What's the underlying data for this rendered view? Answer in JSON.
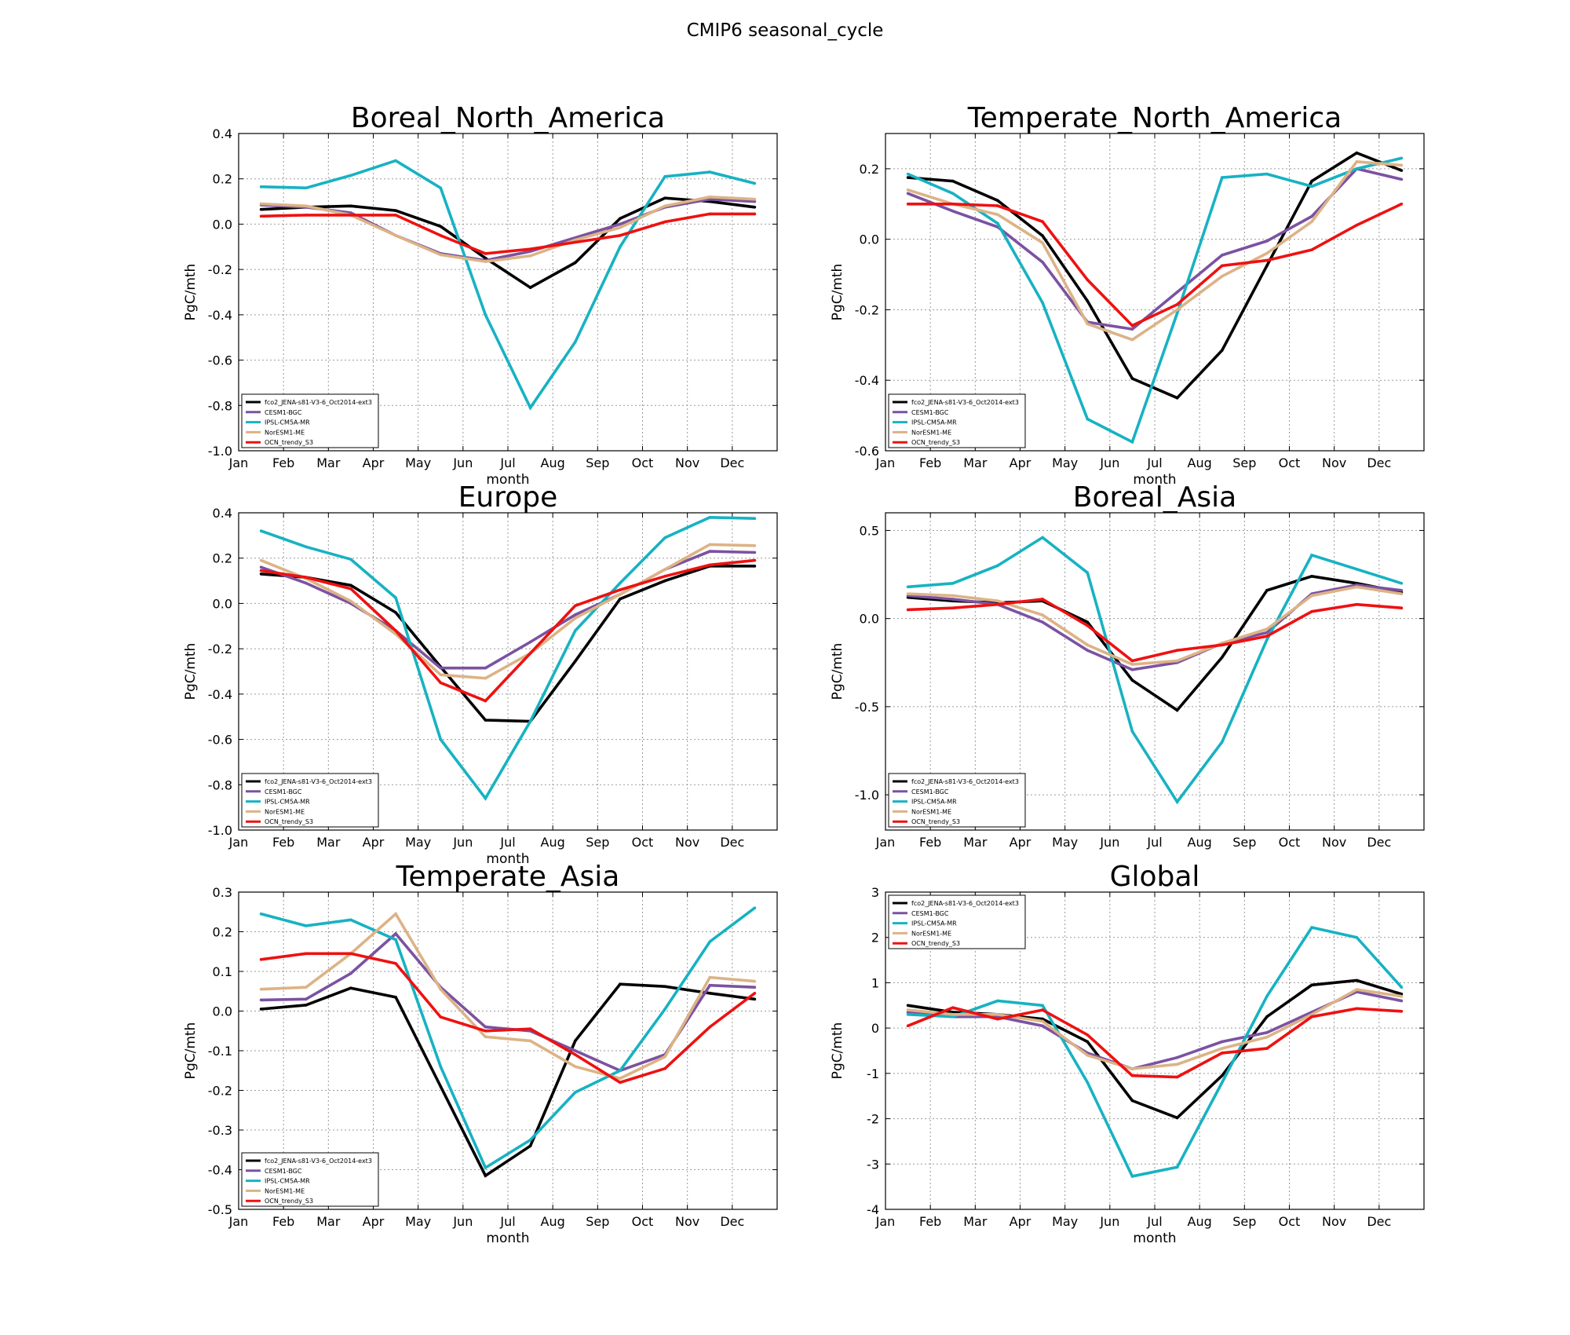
{
  "figure": {
    "title": "CMIP6 seasonal_cycle"
  },
  "series_styles": [
    {
      "name": "fco2_JENA-s81-V3-6_Oct2014-ext3",
      "color": "#000000"
    },
    {
      "name": "CESM1-BGC",
      "color": "#7b52a1"
    },
    {
      "name": "IPSL-CM5A-MR",
      "color": "#17b2c2"
    },
    {
      "name": "NorESM1-ME",
      "color": "#dcb386"
    },
    {
      "name": "OCN_trendy_S3",
      "color": "#ee1111"
    }
  ],
  "chart_data": [
    {
      "type": "line",
      "title": "Boreal_North_America",
      "xlabel": "month",
      "ylabel": "PgC/mth",
      "x_ticks": [
        "Jan",
        "Feb",
        "Mar",
        "Apr",
        "May",
        "Jun",
        "Jul",
        "Aug",
        "Sep",
        "Oct",
        "Nov",
        "Dec"
      ],
      "x": [
        0.5,
        1.5,
        2.5,
        3.5,
        4.5,
        5.5,
        6.5,
        7.5,
        8.5,
        9.5,
        10.5,
        11.5
      ],
      "xlim": [
        0,
        12
      ],
      "ylim": [
        -1.0,
        0.4
      ],
      "y_ticks": [
        "-1.0",
        "-0.8",
        "-0.6",
        "-0.4",
        "-0.2",
        "0.0",
        "0.2",
        "0.4"
      ],
      "legend_position": "lower left",
      "grid": true,
      "series": [
        {
          "name": "fco2_JENA-s81-V3-6_Oct2014-ext3",
          "values": [
            0.065,
            0.075,
            0.08,
            0.06,
            -0.01,
            -0.15,
            -0.28,
            -0.17,
            0.025,
            0.115,
            0.1,
            0.075
          ]
        },
        {
          "name": "CESM1-BGC",
          "values": [
            0.085,
            0.075,
            0.05,
            -0.05,
            -0.13,
            -0.16,
            -0.12,
            -0.06,
            0.0,
            0.075,
            0.11,
            0.1
          ]
        },
        {
          "name": "IPSL-CM5A-MR",
          "values": [
            0.165,
            0.16,
            0.215,
            0.28,
            0.16,
            -0.4,
            -0.81,
            -0.52,
            -0.1,
            0.21,
            0.23,
            0.18
          ]
        },
        {
          "name": "NorESM1-ME",
          "values": [
            0.09,
            0.08,
            0.04,
            -0.05,
            -0.135,
            -0.165,
            -0.14,
            -0.07,
            -0.015,
            0.08,
            0.12,
            0.11
          ]
        },
        {
          "name": "OCN_trendy_S3",
          "values": [
            0.035,
            0.04,
            0.04,
            0.04,
            -0.05,
            -0.13,
            -0.11,
            -0.08,
            -0.05,
            0.01,
            0.045,
            0.045
          ]
        }
      ]
    },
    {
      "type": "line",
      "title": "Temperate_North_America",
      "xlabel": "month",
      "ylabel": "PgC/mth",
      "x_ticks": [
        "Jan",
        "Feb",
        "Mar",
        "Apr",
        "May",
        "Jun",
        "Jul",
        "Aug",
        "Sep",
        "Oct",
        "Nov",
        "Dec"
      ],
      "x": [
        0.5,
        1.5,
        2.5,
        3.5,
        4.5,
        5.5,
        6.5,
        7.5,
        8.5,
        9.5,
        10.5,
        11.5
      ],
      "xlim": [
        0,
        12
      ],
      "ylim": [
        -0.6,
        0.3
      ],
      "y_ticks": [
        "-0.6",
        "-0.4",
        "-0.2",
        "0.0",
        "0.2"
      ],
      "legend_position": "lower left",
      "grid": true,
      "series": [
        {
          "name": "fco2_JENA-s81-V3-6_Oct2014-ext3",
          "values": [
            0.175,
            0.165,
            0.11,
            0.01,
            -0.175,
            -0.395,
            -0.45,
            -0.315,
            -0.075,
            0.165,
            0.245,
            0.195
          ]
        },
        {
          "name": "CESM1-BGC",
          "values": [
            0.13,
            0.08,
            0.035,
            -0.065,
            -0.235,
            -0.255,
            -0.15,
            -0.045,
            -0.005,
            0.065,
            0.2,
            0.17
          ]
        },
        {
          "name": "IPSL-CM5A-MR",
          "values": [
            0.185,
            0.13,
            0.045,
            -0.18,
            -0.51,
            -0.575,
            -0.21,
            0.175,
            0.185,
            0.15,
            0.2,
            0.23
          ]
        },
        {
          "name": "NorESM1-ME",
          "values": [
            0.14,
            0.1,
            0.07,
            -0.01,
            -0.24,
            -0.285,
            -0.2,
            -0.105,
            -0.04,
            0.05,
            0.22,
            0.21
          ]
        },
        {
          "name": "OCN_trendy_S3",
          "values": [
            0.1,
            0.1,
            0.095,
            0.05,
            -0.115,
            -0.245,
            -0.185,
            -0.075,
            -0.06,
            -0.03,
            0.04,
            0.1
          ]
        }
      ]
    },
    {
      "type": "line",
      "title": "Europe",
      "xlabel": "month",
      "ylabel": "PgC/mth",
      "x_ticks": [
        "Jan",
        "Feb",
        "Mar",
        "Apr",
        "May",
        "Jun",
        "Jul",
        "Aug",
        "Sep",
        "Oct",
        "Nov",
        "Dec"
      ],
      "x": [
        0.5,
        1.5,
        2.5,
        3.5,
        4.5,
        5.5,
        6.5,
        7.5,
        8.5,
        9.5,
        10.5,
        11.5
      ],
      "xlim": [
        0,
        12
      ],
      "ylim": [
        -1.0,
        0.4
      ],
      "y_ticks": [
        "-1.0",
        "-0.8",
        "-0.6",
        "-0.4",
        "-0.2",
        "0.0",
        "0.2",
        "0.4"
      ],
      "legend_position": "lower left",
      "grid": true,
      "series": [
        {
          "name": "fco2_JENA-s81-V3-6_Oct2014-ext3",
          "values": [
            0.13,
            0.115,
            0.08,
            -0.04,
            -0.28,
            -0.515,
            -0.52,
            -0.255,
            0.02,
            0.1,
            0.165,
            0.165
          ]
        },
        {
          "name": "CESM1-BGC",
          "values": [
            0.16,
            0.09,
            0.0,
            -0.12,
            -0.285,
            -0.285,
            -0.17,
            -0.05,
            0.04,
            0.15,
            0.23,
            0.225
          ]
        },
        {
          "name": "IPSL-CM5A-MR",
          "values": [
            0.32,
            0.25,
            0.195,
            0.025,
            -0.6,
            -0.86,
            -0.52,
            -0.12,
            0.09,
            0.29,
            0.38,
            0.375
          ]
        },
        {
          "name": "NorESM1-ME",
          "values": [
            0.19,
            0.11,
            0.01,
            -0.135,
            -0.315,
            -0.33,
            -0.22,
            -0.065,
            0.04,
            0.15,
            0.26,
            0.255
          ]
        },
        {
          "name": "OCN_trendy_S3",
          "values": [
            0.145,
            0.115,
            0.065,
            -0.12,
            -0.35,
            -0.43,
            -0.22,
            -0.01,
            0.06,
            0.12,
            0.17,
            0.19
          ]
        }
      ]
    },
    {
      "type": "line",
      "title": "Boreal_Asia",
      "xlabel": "",
      "ylabel": "PgC/mth",
      "x_ticks": [
        "Jan",
        "Feb",
        "Mar",
        "Apr",
        "May",
        "Jun",
        "Jul",
        "Aug",
        "Sep",
        "Oct",
        "Nov",
        "Dec"
      ],
      "x": [
        0.5,
        1.5,
        2.5,
        3.5,
        4.5,
        5.5,
        6.5,
        7.5,
        8.5,
        9.5,
        10.5,
        11.5
      ],
      "xlim": [
        0,
        12
      ],
      "ylim": [
        -1.2,
        0.6
      ],
      "y_ticks": [
        "-1.0",
        "-0.5",
        "0.0",
        "0.5"
      ],
      "y_tick_values": [
        -1.0,
        -0.5,
        0.0,
        0.5
      ],
      "legend_position": "lower left",
      "grid": true,
      "series": [
        {
          "name": "fco2_JENA-s81-V3-6_Oct2014-ext3",
          "values": [
            0.12,
            0.1,
            0.09,
            0.1,
            -0.02,
            -0.35,
            -0.52,
            -0.22,
            0.16,
            0.24,
            0.2,
            0.15
          ]
        },
        {
          "name": "CESM1-BGC",
          "values": [
            0.13,
            0.11,
            0.08,
            -0.02,
            -0.18,
            -0.29,
            -0.25,
            -0.14,
            -0.08,
            0.14,
            0.19,
            0.16
          ]
        },
        {
          "name": "IPSL-CM5A-MR",
          "values": [
            0.18,
            0.2,
            0.3,
            0.46,
            0.26,
            -0.64,
            -1.04,
            -0.7,
            -0.12,
            0.36,
            0.28,
            0.2
          ]
        },
        {
          "name": "NorESM1-ME",
          "values": [
            0.14,
            0.13,
            0.1,
            0.02,
            -0.15,
            -0.26,
            -0.24,
            -0.14,
            -0.06,
            0.13,
            0.18,
            0.14
          ]
        },
        {
          "name": "OCN_trendy_S3",
          "values": [
            0.05,
            0.06,
            0.08,
            0.11,
            -0.04,
            -0.24,
            -0.18,
            -0.15,
            -0.1,
            0.04,
            0.08,
            0.06
          ]
        }
      ]
    },
    {
      "type": "line",
      "title": "Temperate_Asia",
      "xlabel": "month",
      "ylabel": "PgC/mth",
      "x_ticks": [
        "Jan",
        "Feb",
        "Mar",
        "Apr",
        "May",
        "Jun",
        "Jul",
        "Aug",
        "Sep",
        "Oct",
        "Nov",
        "Dec"
      ],
      "x": [
        0.5,
        1.5,
        2.5,
        3.5,
        4.5,
        5.5,
        6.5,
        7.5,
        8.5,
        9.5,
        10.5,
        11.5
      ],
      "xlim": [
        0,
        12
      ],
      "ylim": [
        -0.5,
        0.3
      ],
      "y_ticks": [
        "-0.5",
        "-0.4",
        "-0.3",
        "-0.2",
        "-0.1",
        "0.0",
        "0.1",
        "0.2",
        "0.3"
      ],
      "legend_position": "lower left",
      "grid": true,
      "series": [
        {
          "name": "fco2_JENA-s81-V3-6_Oct2014-ext3",
          "values": [
            0.005,
            0.015,
            0.058,
            0.035,
            -0.19,
            -0.415,
            -0.34,
            -0.075,
            0.068,
            0.062,
            0.045,
            0.03
          ]
        },
        {
          "name": "CESM1-BGC",
          "values": [
            0.028,
            0.03,
            0.095,
            0.195,
            0.06,
            -0.04,
            -0.05,
            -0.1,
            -0.15,
            -0.11,
            0.065,
            0.06
          ]
        },
        {
          "name": "IPSL-CM5A-MR",
          "values": [
            0.245,
            0.215,
            0.23,
            0.18,
            -0.14,
            -0.395,
            -0.325,
            -0.205,
            -0.15,
            0.005,
            0.175,
            0.26
          ]
        },
        {
          "name": "NorESM1-ME",
          "values": [
            0.055,
            0.06,
            0.145,
            0.245,
            0.055,
            -0.065,
            -0.075,
            -0.14,
            -0.17,
            -0.115,
            0.085,
            0.075
          ]
        },
        {
          "name": "OCN_trendy_S3",
          "values": [
            0.13,
            0.145,
            0.145,
            0.12,
            -0.015,
            -0.05,
            -0.045,
            -0.11,
            -0.18,
            -0.145,
            -0.04,
            0.045
          ]
        }
      ]
    },
    {
      "type": "line",
      "title": "Global",
      "xlabel": "month",
      "ylabel": "PgC/mth",
      "x_ticks": [
        "Jan",
        "Feb",
        "Mar",
        "Apr",
        "May",
        "Jun",
        "Jul",
        "Aug",
        "Sep",
        "Oct",
        "Nov",
        "Dec"
      ],
      "x": [
        0.5,
        1.5,
        2.5,
        3.5,
        4.5,
        5.5,
        6.5,
        7.5,
        8.5,
        9.5,
        10.5,
        11.5
      ],
      "xlim": [
        0,
        12
      ],
      "ylim": [
        -4,
        3
      ],
      "y_ticks": [
        "-4",
        "-3",
        "-2",
        "-1",
        "0",
        "1",
        "2",
        "3"
      ],
      "legend_position": "upper left",
      "grid": true,
      "series": [
        {
          "name": "fco2_JENA-s81-V3-6_Oct2014-ext3",
          "values": [
            0.5,
            0.35,
            0.3,
            0.2,
            -0.3,
            -1.6,
            -1.98,
            -1.05,
            0.25,
            0.95,
            1.05,
            0.75
          ]
        },
        {
          "name": "CESM1-BGC",
          "values": [
            0.35,
            0.25,
            0.25,
            0.05,
            -0.55,
            -0.9,
            -0.65,
            -0.3,
            -0.1,
            0.35,
            0.8,
            0.6
          ]
        },
        {
          "name": "IPSL-CM5A-MR",
          "values": [
            0.3,
            0.25,
            0.6,
            0.5,
            -1.2,
            -3.27,
            -3.07,
            -1.2,
            0.7,
            2.22,
            2.0,
            0.9
          ]
        },
        {
          "name": "NorESM1-ME",
          "values": [
            0.4,
            0.3,
            0.3,
            0.15,
            -0.6,
            -0.9,
            -0.8,
            -0.45,
            -0.2,
            0.3,
            0.85,
            0.7
          ]
        },
        {
          "name": "OCN_trendy_S3",
          "values": [
            0.05,
            0.45,
            0.2,
            0.4,
            -0.15,
            -1.05,
            -1.08,
            -0.55,
            -0.45,
            0.25,
            0.43,
            0.37
          ]
        }
      ]
    }
  ]
}
